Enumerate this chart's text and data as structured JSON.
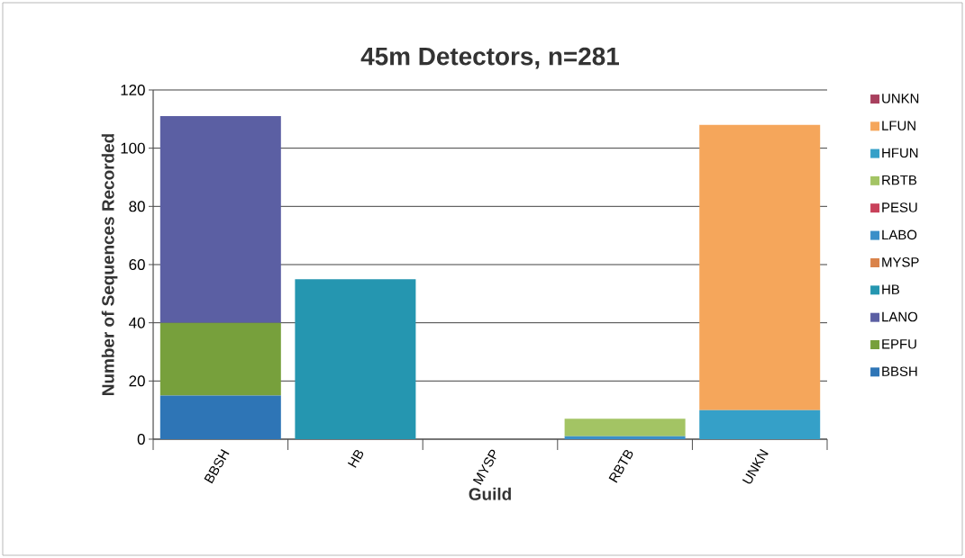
{
  "chart_data": {
    "type": "bar",
    "title": "45m Detectors, n=281",
    "xlabel": "Guild",
    "ylabel": "Number of Sequences Recorded",
    "categories": [
      "BBSH",
      "HB",
      "MYSP",
      "RBTB",
      "UNKN"
    ],
    "stacked": true,
    "ylim": [
      0,
      120
    ],
    "yticks": [
      0,
      20,
      40,
      60,
      80,
      100,
      120
    ],
    "grid": "y",
    "legend": "right",
    "series": [
      {
        "name": "BBSH",
        "color": "#2e75b6",
        "values": [
          15,
          0,
          0,
          0,
          0
        ]
      },
      {
        "name": "EPFU",
        "color": "#77a03c",
        "values": [
          25,
          0,
          0,
          0,
          0
        ]
      },
      {
        "name": "LANO",
        "color": "#5b5fa3",
        "values": [
          71,
          0,
          0,
          0,
          0
        ]
      },
      {
        "name": "HB",
        "color": "#2596b0",
        "values": [
          0,
          55,
          0,
          0,
          0
        ]
      },
      {
        "name": "MYSP",
        "color": "#d9834a",
        "values": [
          0,
          0,
          0,
          0,
          0
        ]
      },
      {
        "name": "LABO",
        "color": "#3a8fc8",
        "values": [
          0,
          0,
          0,
          1,
          0
        ]
      },
      {
        "name": "PESU",
        "color": "#c8415a",
        "values": [
          0,
          0,
          0,
          0,
          0
        ]
      },
      {
        "name": "RBTB",
        "color": "#a3c464",
        "values": [
          0,
          0,
          0,
          6,
          0
        ]
      },
      {
        "name": "HFUN",
        "color": "#35a0c8",
        "values": [
          0,
          0,
          0,
          0,
          10
        ]
      },
      {
        "name": "LFUN",
        "color": "#f5a65b",
        "values": [
          0,
          0,
          0,
          0,
          98
        ]
      },
      {
        "name": "UNKN",
        "color": "#a8405e",
        "values": [
          0,
          0,
          0,
          0,
          0
        ]
      }
    ]
  }
}
